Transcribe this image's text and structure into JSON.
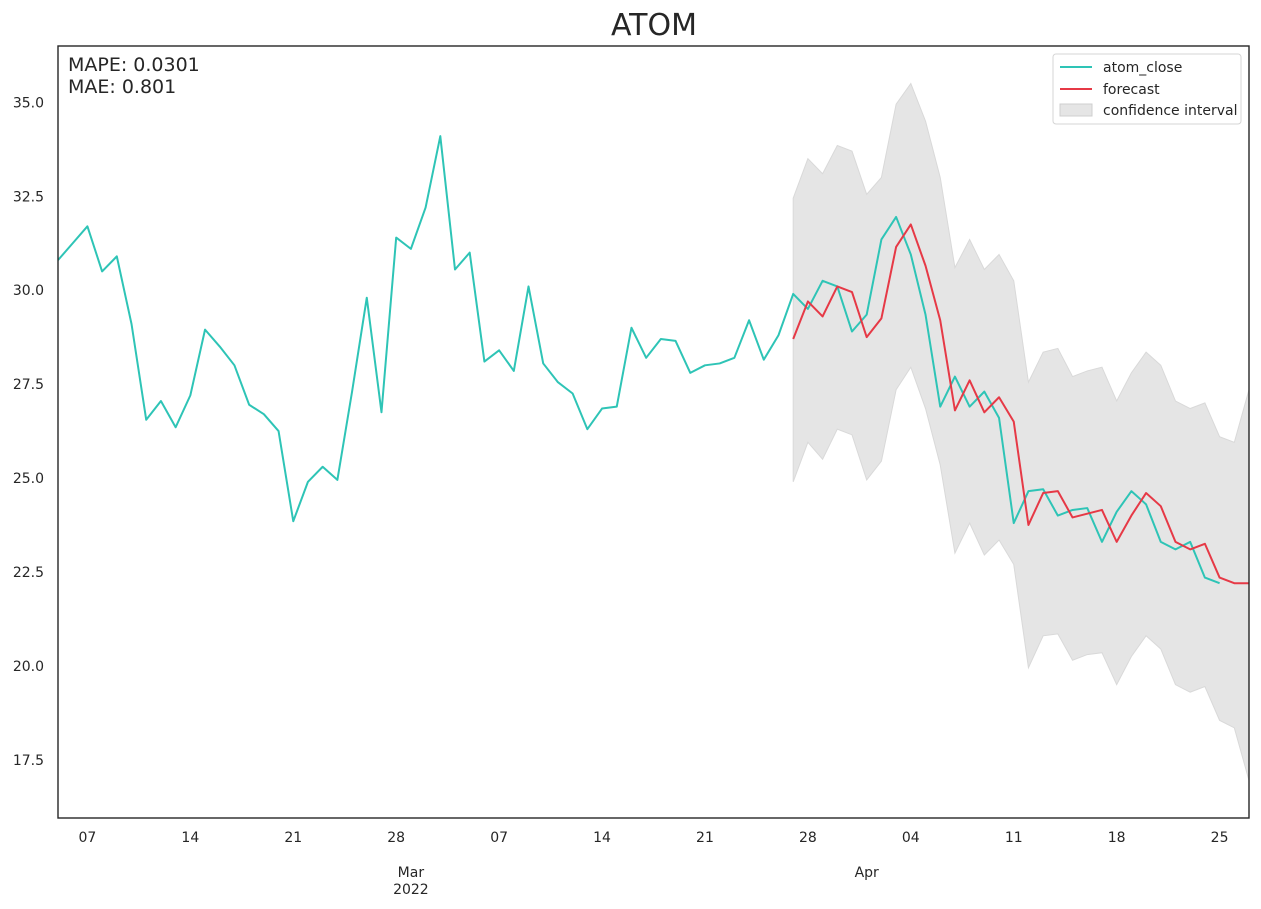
{
  "chart_data": {
    "type": "line",
    "title": "ATOM",
    "x_start_date": "2022-02-05",
    "x_end_date": "2022-04-27",
    "ylim": [
      15.95,
      36.5
    ],
    "grid": false,
    "legend_position": "top-right",
    "yticks": [
      "17.5",
      "20.0",
      "22.5",
      "25.0",
      "27.5",
      "30.0",
      "32.5",
      "35.0"
    ],
    "xticks": [
      {
        "date": "2022-02-07",
        "label": "07"
      },
      {
        "date": "2022-02-14",
        "label": "14"
      },
      {
        "date": "2022-02-21",
        "label": "21"
      },
      {
        "date": "2022-02-28",
        "label": "28"
      },
      {
        "date": "2022-03-07",
        "label": "07"
      },
      {
        "date": "2022-03-14",
        "label": "14"
      },
      {
        "date": "2022-03-21",
        "label": "21"
      },
      {
        "date": "2022-03-28",
        "label": "28"
      },
      {
        "date": "2022-04-04",
        "label": "04"
      },
      {
        "date": "2022-04-11",
        "label": "11"
      },
      {
        "date": "2022-04-18",
        "label": "18"
      },
      {
        "date": "2022-04-25",
        "label": "25"
      }
    ],
    "month_labels": [
      {
        "date": "2022-03-01",
        "label": "Mar",
        "sublabel": "2022"
      },
      {
        "date": "2022-04-01",
        "label": "Apr",
        "sublabel": ""
      }
    ],
    "metrics": [
      "MAPE: 0.0301",
      "MAE: 0.801"
    ],
    "series": [
      {
        "name": "atom_close",
        "color": "#2ec4b6",
        "start_date": "2022-02-05",
        "values": [
          30.8,
          31.25,
          31.7,
          30.5,
          30.9,
          29.1,
          26.55,
          27.05,
          26.35,
          27.2,
          28.95,
          28.5,
          28.0,
          26.95,
          26.7,
          26.25,
          23.85,
          24.9,
          25.3,
          24.95,
          27.3,
          29.8,
          26.75,
          31.4,
          31.1,
          32.2,
          34.1,
          30.55,
          31.0,
          28.1,
          28.4,
          27.85,
          30.1,
          28.05,
          27.55,
          27.25,
          26.3,
          26.85,
          26.9,
          29.0,
          28.2,
          28.7,
          28.65,
          27.8,
          28.0,
          28.05,
          28.2,
          29.2,
          28.15,
          28.8,
          29.9,
          29.5,
          30.25,
          30.1,
          28.9,
          29.35,
          31.35,
          31.95,
          30.95,
          29.35,
          26.9,
          27.7,
          26.9,
          27.3,
          26.6,
          23.8,
          24.65,
          24.7,
          24.0,
          24.15,
          24.2,
          23.3,
          24.1,
          24.65,
          24.3,
          23.3,
          23.1,
          23.3,
          22.35,
          22.2
        ]
      },
      {
        "name": "forecast",
        "color": "#e63946",
        "start_date": "2022-03-27",
        "values": [
          28.7,
          29.7,
          29.3,
          30.1,
          29.95,
          28.75,
          29.25,
          31.15,
          31.75,
          30.65,
          29.2,
          26.8,
          27.6,
          26.75,
          27.15,
          26.5,
          23.75,
          24.6,
          24.65,
          23.95,
          24.05,
          24.15,
          23.3,
          24.0,
          24.6,
          24.25,
          23.3,
          23.1,
          23.25,
          22.35,
          22.2,
          22.2
        ]
      }
    ],
    "confidence_interval": {
      "name": "confidence interval",
      "color": "#e5e5e5",
      "start_date": "2022-03-27",
      "upper": [
        32.45,
        33.5,
        33.1,
        33.85,
        33.7,
        32.55,
        33.0,
        34.95,
        35.5,
        34.5,
        33.0,
        30.6,
        31.35,
        30.55,
        30.95,
        30.25,
        27.55,
        28.35,
        28.45,
        27.7,
        27.85,
        27.95,
        27.05,
        27.8,
        28.35,
        28.0,
        27.05,
        26.85,
        27.0,
        26.1,
        25.95,
        27.35
      ],
      "lower": [
        24.9,
        25.95,
        25.5,
        26.3,
        26.15,
        24.95,
        25.45,
        27.35,
        27.95,
        26.85,
        25.35,
        23.0,
        23.8,
        22.95,
        23.35,
        22.7,
        19.95,
        20.8,
        20.85,
        20.15,
        20.3,
        20.35,
        19.5,
        20.25,
        20.8,
        20.45,
        19.5,
        19.3,
        19.45,
        18.55,
        18.35,
        16.95
      ]
    }
  }
}
